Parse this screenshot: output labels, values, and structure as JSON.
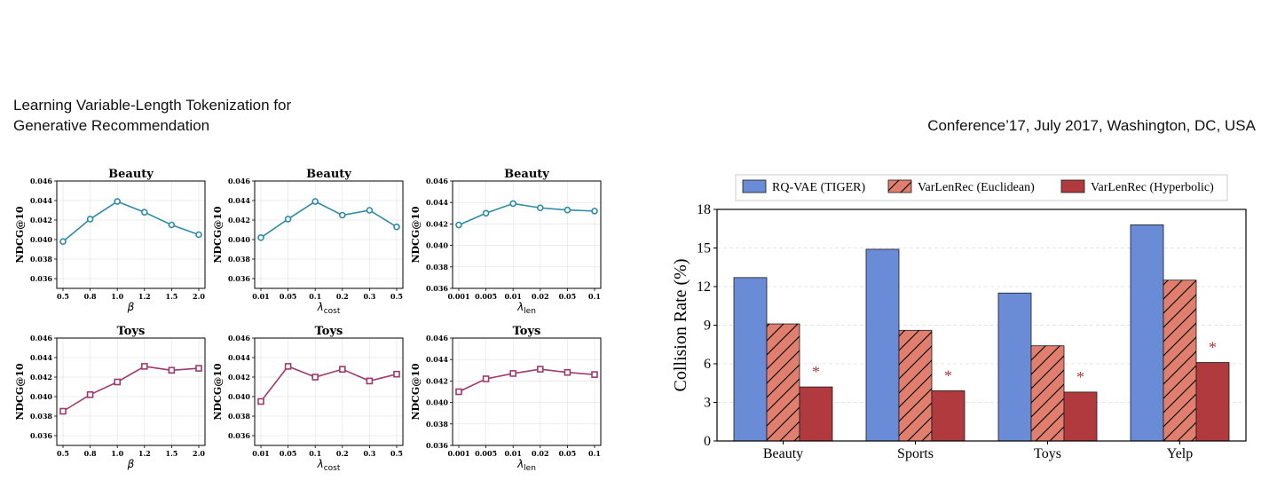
{
  "header": {
    "left_line1": "Learning Variable-Length Tokenization for",
    "left_line2": "Generative Recommendation",
    "right": "Conference’17, July 2017, Washington, DC, USA"
  },
  "colors": {
    "beauty_line": "#2f8aa6",
    "toys_line": "#9e3a6e",
    "rqvae": "#6a8bd6",
    "euclid": "#e07f6d",
    "hyper": "#b03a3e"
  },
  "chart_data": [
    {
      "type": "line",
      "title": "Beauty",
      "ylabel": "NDCG@10",
      "xlabel_main": "β",
      "xlabel_sub": "",
      "x": [
        "0.5",
        "0.8",
        "1.0",
        "1.2",
        "1.5",
        "2.0"
      ],
      "values": [
        0.0398,
        0.0421,
        0.0439,
        0.0428,
        0.0415,
        0.0405
      ],
      "ylim": [
        0.035,
        0.046
      ],
      "yticks": [
        "0.036",
        "0.038",
        "0.040",
        "0.042",
        "0.044",
        "0.046"
      ],
      "marker": "circle",
      "color_key": "beauty_line"
    },
    {
      "type": "line",
      "title": "Beauty",
      "ylabel": "NDCG@10",
      "xlabel_main": "λ",
      "xlabel_sub": "cost",
      "x": [
        "0.01",
        "0.05",
        "0.1",
        "0.2",
        "0.3",
        "0.5"
      ],
      "values": [
        0.0402,
        0.0421,
        0.0439,
        0.0425,
        0.043,
        0.0413
      ],
      "ylim": [
        0.035,
        0.046
      ],
      "yticks": [
        "0.036",
        "0.038",
        "0.040",
        "0.042",
        "0.044",
        "0.046"
      ],
      "marker": "circle",
      "color_key": "beauty_line"
    },
    {
      "type": "line",
      "title": "Beauty",
      "ylabel": "NDCG@10",
      "xlabel_main": "λ",
      "xlabel_sub": "len",
      "x": [
        "0.001",
        "0.005",
        "0.01",
        "0.02",
        "0.05",
        "0.1"
      ],
      "values": [
        0.0419,
        0.043,
        0.0439,
        0.0435,
        0.0433,
        0.0432
      ],
      "ylim": [
        0.036,
        0.046
      ],
      "yticks": [
        "0.036",
        "0.038",
        "0.040",
        "0.042",
        "0.044",
        "0.046"
      ],
      "marker": "circle",
      "color_key": "beauty_line"
    },
    {
      "type": "line",
      "title": "Toys",
      "ylabel": "NDCG@10",
      "xlabel_main": "β",
      "xlabel_sub": "",
      "x": [
        "0.5",
        "0.8",
        "1.0",
        "1.2",
        "1.5",
        "2.0"
      ],
      "values": [
        0.0385,
        0.0402,
        0.0415,
        0.0431,
        0.0427,
        0.0429
      ],
      "ylim": [
        0.035,
        0.046
      ],
      "yticks": [
        "0.036",
        "0.038",
        "0.040",
        "0.042",
        "0.044",
        "0.046"
      ],
      "marker": "square",
      "color_key": "toys_line"
    },
    {
      "type": "line",
      "title": "Toys",
      "ylabel": "NDCG@10",
      "xlabel_main": "λ",
      "xlabel_sub": "cost",
      "x": [
        "0.01",
        "0.05",
        "0.1",
        "0.2",
        "0.3",
        "0.5"
      ],
      "values": [
        0.0395,
        0.0431,
        0.042,
        0.0428,
        0.0416,
        0.0423
      ],
      "ylim": [
        0.035,
        0.046
      ],
      "yticks": [
        "0.036",
        "0.038",
        "0.040",
        "0.042",
        "0.044",
        "0.046"
      ],
      "marker": "square",
      "color_key": "toys_line"
    },
    {
      "type": "line",
      "title": "Toys",
      "ylabel": "NDCG@10",
      "xlabel_main": "λ",
      "xlabel_sub": "len",
      "x": [
        "0.001",
        "0.005",
        "0.01",
        "0.02",
        "0.05",
        "0.1"
      ],
      "values": [
        0.041,
        0.0422,
        0.0427,
        0.0431,
        0.0428,
        0.0426
      ],
      "ylim": [
        0.036,
        0.046
      ],
      "yticks": [
        "0.036",
        "0.038",
        "0.040",
        "0.042",
        "0.044",
        "0.046"
      ],
      "marker": "square",
      "color_key": "toys_line"
    },
    {
      "type": "bar",
      "title": "",
      "ylabel": "Collision Rate (%)",
      "xlabel": "",
      "categories": [
        "Beauty",
        "Sports",
        "Toys",
        "Yelp"
      ],
      "series": [
        {
          "name": "RQ-VAE (TIGER)",
          "values": [
            12.7,
            14.9,
            11.5,
            16.8
          ],
          "color_key": "rqvae",
          "hatch": false
        },
        {
          "name": "VarLenRec (Euclidean)",
          "values": [
            9.1,
            8.6,
            7.4,
            12.5
          ],
          "color_key": "euclid",
          "hatch": true
        },
        {
          "name": "VarLenRec (Hyperbolic)",
          "values": [
            4.2,
            3.9,
            3.8,
            6.1
          ],
          "color_key": "hyper",
          "hatch": false
        }
      ],
      "ylim": [
        0,
        18
      ],
      "yticks": [
        "0",
        "3",
        "6",
        "9",
        "12",
        "15",
        "18"
      ],
      "annotation": "*",
      "legend": "top",
      "grid": "y-dashed"
    }
  ]
}
